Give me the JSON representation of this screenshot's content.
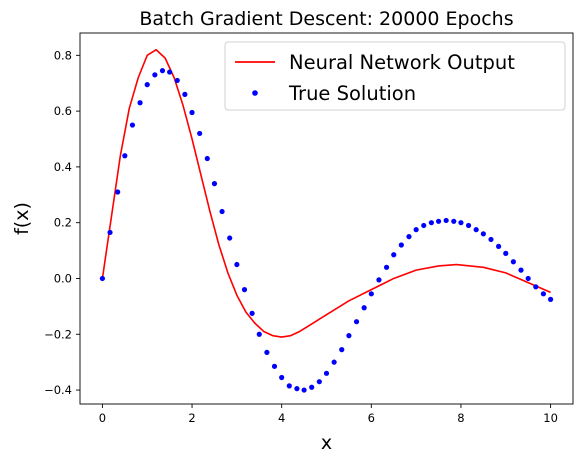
{
  "chart_data": {
    "type": "line",
    "title": "Batch Gradient Descent: 20000 Epochs",
    "xlabel": "x",
    "ylabel": "f(x)",
    "xlim": [
      -0.5,
      10.5
    ],
    "ylim": [
      -0.45,
      0.88
    ],
    "xticks": [
      0,
      2,
      4,
      6,
      8,
      10
    ],
    "yticks": [
      -0.4,
      -0.2,
      0.0,
      0.2,
      0.4,
      0.6,
      0.8
    ],
    "xtick_labels": [
      "0",
      "2",
      "4",
      "6",
      "8",
      "10"
    ],
    "ytick_labels": [
      "−0.4",
      "−0.2",
      "0.0",
      "0.2",
      "0.4",
      "0.6",
      "0.8"
    ],
    "grid": false,
    "legend_position": "top-right",
    "series": [
      {
        "name": "Neural Network Output",
        "kind": "line",
        "color": "#ff0000",
        "x": [
          0,
          0.2,
          0.4,
          0.6,
          0.8,
          1.0,
          1.2,
          1.4,
          1.6,
          1.8,
          2.0,
          2.2,
          2.4,
          2.6,
          2.8,
          3.0,
          3.2,
          3.4,
          3.6,
          3.8,
          4.0,
          4.2,
          4.4,
          4.6,
          4.8,
          5.0,
          5.5,
          6.0,
          6.5,
          7.0,
          7.5,
          7.9,
          8.5,
          9.0,
          9.5,
          10.0
        ],
        "y": [
          0.0,
          0.22,
          0.44,
          0.61,
          0.72,
          0.8,
          0.82,
          0.79,
          0.72,
          0.62,
          0.5,
          0.37,
          0.24,
          0.12,
          0.02,
          -0.06,
          -0.12,
          -0.16,
          -0.19,
          -0.205,
          -0.21,
          -0.205,
          -0.19,
          -0.17,
          -0.15,
          -0.13,
          -0.08,
          -0.04,
          0.0,
          0.03,
          0.045,
          0.05,
          0.04,
          0.02,
          -0.015,
          -0.05
        ]
      },
      {
        "name": "True Solution",
        "kind": "scatter",
        "color": "#0000ff",
        "x": [
          0.0,
          0.17,
          0.34,
          0.5,
          0.67,
          0.84,
          1.0,
          1.17,
          1.34,
          1.5,
          1.67,
          1.84,
          2.0,
          2.17,
          2.34,
          2.5,
          2.67,
          2.84,
          3.0,
          3.17,
          3.34,
          3.5,
          3.67,
          3.84,
          4.0,
          4.17,
          4.34,
          4.5,
          4.67,
          4.84,
          5.0,
          5.17,
          5.34,
          5.5,
          5.67,
          5.84,
          6.0,
          6.17,
          6.34,
          6.5,
          6.67,
          6.84,
          7.0,
          7.17,
          7.34,
          7.5,
          7.67,
          7.84,
          8.0,
          8.17,
          8.34,
          8.5,
          8.67,
          8.84,
          9.0,
          9.17,
          9.34,
          9.5,
          9.67,
          9.84,
          10.0
        ],
        "y": [
          0.0,
          0.165,
          0.31,
          0.44,
          0.55,
          0.63,
          0.695,
          0.73,
          0.745,
          0.74,
          0.71,
          0.66,
          0.595,
          0.52,
          0.43,
          0.34,
          0.24,
          0.145,
          0.05,
          -0.04,
          -0.125,
          -0.2,
          -0.265,
          -0.315,
          -0.355,
          -0.385,
          -0.395,
          -0.4,
          -0.39,
          -0.37,
          -0.34,
          -0.3,
          -0.255,
          -0.205,
          -0.155,
          -0.105,
          -0.055,
          -0.005,
          0.04,
          0.085,
          0.12,
          0.15,
          0.175,
          0.19,
          0.2,
          0.205,
          0.208,
          0.205,
          0.2,
          0.19,
          0.175,
          0.16,
          0.14,
          0.115,
          0.09,
          0.06,
          0.03,
          0.0,
          -0.03,
          -0.055,
          -0.075
        ]
      }
    ]
  }
}
